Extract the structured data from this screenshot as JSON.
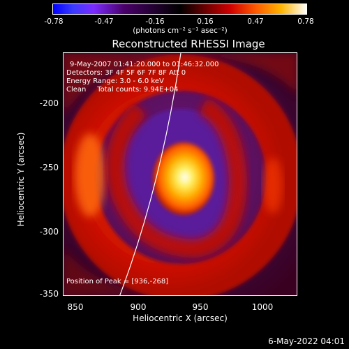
{
  "colorbar": {
    "ticks": [
      "-0.78",
      "-0.47",
      "-0.16",
      "0.16",
      "0.47",
      "0.78"
    ],
    "units": "(photons cm⁻² s⁻¹ asec⁻²)"
  },
  "title": "Reconstructed RHESSI Image",
  "info": {
    "line1": "9-May-2007 01:41:20.000 to 01:46:32.000",
    "line2": "Detectors: 3F 4F 5F 6F 7F 8F Att 0",
    "line3": "Energy Range: 3.0 - 6.0 keV",
    "line4": "Clean     Total counts: 9.94E+04"
  },
  "peak": "Position of Peak = [936,-268]",
  "axes": {
    "xlabel": "Heliocentric X (arcsec)",
    "ylabel": "Heliocentric Y (arcsec)",
    "xticks": [
      "850",
      "900",
      "950",
      "1000"
    ],
    "yticks": [
      "-200",
      "-250",
      "-300",
      "-350"
    ]
  },
  "date": "6-May-2022 04:01"
}
